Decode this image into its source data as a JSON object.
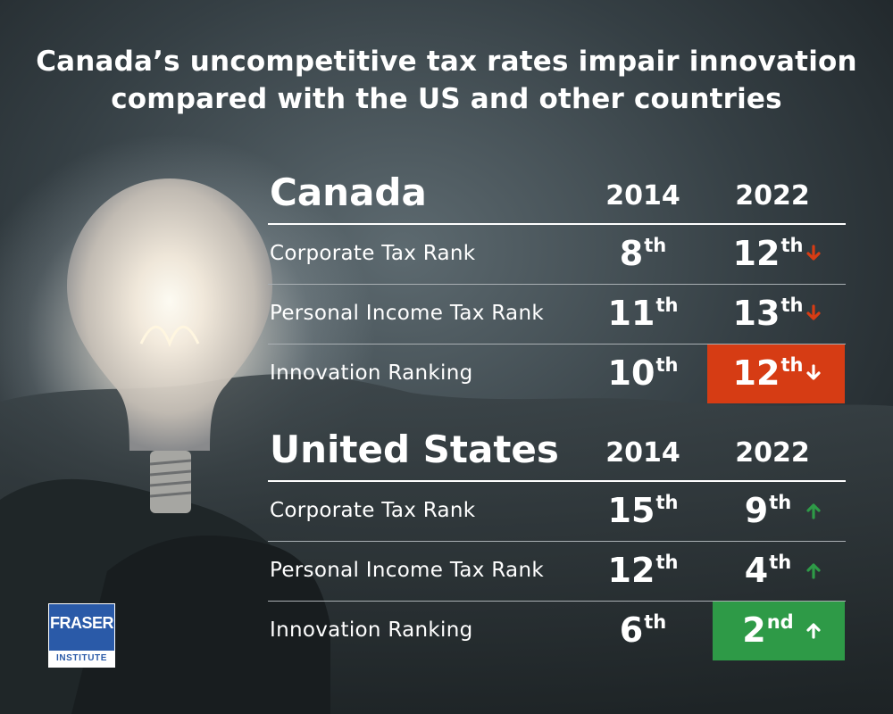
{
  "title": {
    "line1": "Canada’s uncompetitive tax rates impair innovation",
    "line2": "compared with the US and other countries"
  },
  "colors": {
    "decline": "#d63c14",
    "improve": "#2e9a47",
    "logo_blue": "#2a5aa8"
  },
  "tables": [
    {
      "country": "Canada",
      "year1": "2014",
      "year2": "2022",
      "rows": [
        {
          "label": "Corporate Tax Rank",
          "r1_num": "8",
          "r1_suf": "th",
          "r2_num": "12",
          "r2_suf": "th",
          "trend": "down",
          "icon": "arrow-down-icon"
        },
        {
          "label": "Personal Income Tax Rank",
          "r1_num": "11",
          "r1_suf": "th",
          "r2_num": "13",
          "r2_suf": "th",
          "trend": "down",
          "icon": "arrow-down-icon"
        },
        {
          "label": "Innovation Ranking",
          "r1_num": "10",
          "r1_suf": "th",
          "r2_num": "12",
          "r2_suf": "th",
          "trend": "down",
          "icon": "arrow-down-icon",
          "highlight": true
        }
      ]
    },
    {
      "country": "United States",
      "year1": "2014",
      "year2": "2022",
      "rows": [
        {
          "label": "Corporate Tax Rank",
          "r1_num": "15",
          "r1_suf": "th",
          "r2_num": "9",
          "r2_suf": "th",
          "trend": "up",
          "icon": "arrow-up-icon"
        },
        {
          "label": "Personal Income Tax Rank",
          "r1_num": "12",
          "r1_suf": "th",
          "r2_num": "4",
          "r2_suf": "th",
          "trend": "up",
          "icon": "arrow-up-icon"
        },
        {
          "label": "Innovation Ranking",
          "r1_num": "6",
          "r1_suf": "th",
          "r2_num": "2",
          "r2_suf": "nd",
          "trend": "up",
          "icon": "arrow-up-icon",
          "highlight": true
        }
      ]
    }
  ],
  "logo": {
    "name": "FRASER",
    "sub": "INSTITUTE"
  }
}
